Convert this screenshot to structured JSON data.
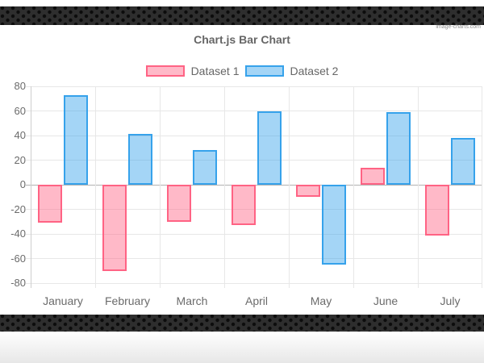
{
  "watermark": "image-charts.com",
  "chart_data": {
    "type": "bar",
    "title": "Chart.js Bar Chart",
    "categories": [
      "January",
      "February",
      "March",
      "April",
      "May",
      "June",
      "July"
    ],
    "series": [
      {
        "name": "Dataset 1",
        "values": [
          -31,
          -70,
          -30,
          -33,
          -10,
          14,
          -41
        ],
        "fill_color": "rgba(255,99,132,0.45)",
        "border_color": "#ff6384"
      },
      {
        "name": "Dataset 2",
        "values": [
          73,
          41,
          28,
          60,
          -65,
          59,
          38
        ],
        "fill_color": "rgba(54,162,235,0.45)",
        "border_color": "#36a2eb"
      }
    ],
    "ylim": [
      -80,
      80
    ],
    "yticks": [
      80,
      60,
      40,
      20,
      0,
      -20,
      -40,
      -60,
      -80
    ],
    "grid": true,
    "legend_position": "top"
  },
  "colors": {
    "axis_text": "#6b6b6b",
    "grid_line": "#e7e7e7",
    "zero_line": "#b3b3b3",
    "title_text": "#666666",
    "band_base": "#2e2e2e",
    "band_dot": "#0c0c0c",
    "dataset1_border": "#ff6384",
    "dataset2_border": "#36a2eb"
  }
}
